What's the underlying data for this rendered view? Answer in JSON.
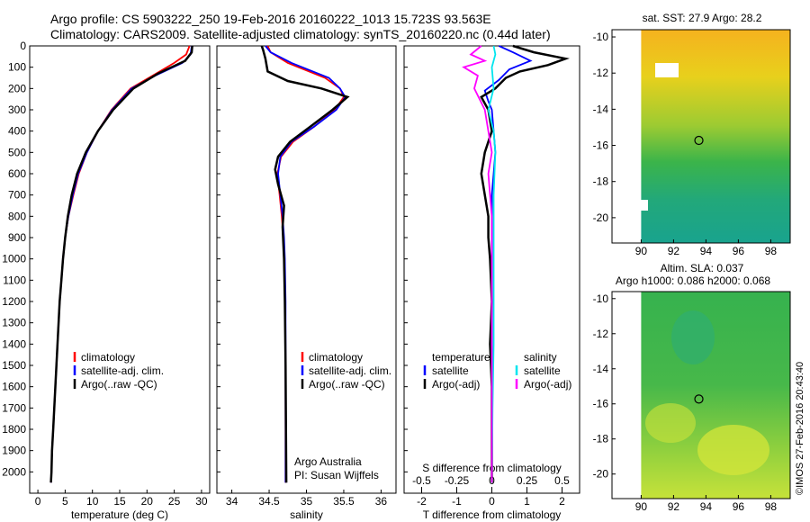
{
  "title": {
    "line1": "Argo profile: CS 5903222_250 19-Feb-2016 20160222_1013 15.723S 93.563E",
    "line2": "Climatology: CARS2009. Satellite-adjusted climatology: synTS_20160220.nc (0.44d later)"
  },
  "colors": {
    "climatology": "#ff0000",
    "satellite": "#0000ff",
    "argo": "#000000",
    "sal_satellite": "#00e5ee",
    "sal_argo": "#ff00ff"
  },
  "chart_data": [
    {
      "type": "line",
      "xlabel": "temperature (deg C)",
      "ylabel": "",
      "xlim": [
        -1.5,
        31.5
      ],
      "ylim": [
        2100,
        0
      ],
      "xticks": [
        "0",
        "5",
        "10",
        "15",
        "20",
        "25",
        "30"
      ],
      "yticks": [
        "0",
        "100",
        "200",
        "300",
        "400",
        "500",
        "600",
        "700",
        "800",
        "900",
        "1000",
        "1100",
        "1200",
        "1300",
        "1400",
        "1500",
        "1600",
        "1700",
        "1800",
        "1900",
        "2000"
      ],
      "legend": [
        "climatology",
        "satellite-adj. clim.",
        "Argo(..raw -QC)"
      ],
      "legend_position": "lower-center",
      "series": [
        {
          "name": "climatology",
          "color": "#ff0000",
          "points": [
            [
              27.8,
              0
            ],
            [
              27.2,
              40
            ],
            [
              25,
              80
            ],
            [
              21,
              140
            ],
            [
              17,
              200
            ],
            [
              13.5,
              300
            ],
            [
              11,
              400
            ],
            [
              9,
              500
            ],
            [
              7.5,
              600
            ],
            [
              6.5,
              700
            ],
            [
              5.6,
              800
            ],
            [
              5,
              900
            ],
            [
              4.6,
              1000
            ],
            [
              4.3,
              1100
            ],
            [
              4,
              1200
            ],
            [
              3.8,
              1300
            ],
            [
              3.6,
              1400
            ],
            [
              3.4,
              1500
            ],
            [
              3.2,
              1600
            ],
            [
              3,
              1700
            ],
            [
              2.8,
              1800
            ],
            [
              2.6,
              1900
            ],
            [
              2.5,
              2000
            ],
            [
              2.4,
              2050
            ]
          ]
        },
        {
          "name": "satellite-adj. clim.",
          "color": "#0000ff",
          "points": [
            [
              28.2,
              0
            ],
            [
              28,
              40
            ],
            [
              26.5,
              80
            ],
            [
              21.5,
              140
            ],
            [
              17.2,
              200
            ],
            [
              13.6,
              300
            ],
            [
              11,
              400
            ],
            [
              9,
              500
            ],
            [
              7.4,
              600
            ],
            [
              6.4,
              700
            ],
            [
              5.6,
              800
            ],
            [
              5,
              900
            ],
            [
              4.6,
              1000
            ],
            [
              4.3,
              1100
            ],
            [
              4,
              1200
            ],
            [
              3.8,
              1300
            ],
            [
              3.6,
              1400
            ],
            [
              3.4,
              1500
            ],
            [
              3.2,
              1600
            ],
            [
              3,
              1700
            ],
            [
              2.8,
              1800
            ],
            [
              2.6,
              1900
            ],
            [
              2.5,
              2000
            ],
            [
              2.4,
              2050
            ]
          ]
        },
        {
          "name": "Argo(..raw -QC)",
          "color": "#000000",
          "points": [
            [
              28.3,
              0
            ],
            [
              28.2,
              30
            ],
            [
              27,
              70
            ],
            [
              22,
              130
            ],
            [
              17.5,
              200
            ],
            [
              13.8,
              300
            ],
            [
              11,
              400
            ],
            [
              8.8,
              500
            ],
            [
              7.2,
              600
            ],
            [
              6.2,
              700
            ],
            [
              5.5,
              800
            ],
            [
              5,
              900
            ],
            [
              4.6,
              1000
            ],
            [
              4.3,
              1100
            ],
            [
              4,
              1200
            ],
            [
              3.8,
              1300
            ],
            [
              3.6,
              1400
            ],
            [
              3.4,
              1500
            ],
            [
              3.2,
              1600
            ],
            [
              3,
              1700
            ],
            [
              2.8,
              1800
            ],
            [
              2.6,
              1900
            ],
            [
              2.5,
              2000
            ],
            [
              2.4,
              2050
            ]
          ]
        }
      ]
    },
    {
      "type": "line",
      "xlabel": "salinity",
      "ylabel": "",
      "xlim": [
        33.8,
        36.2
      ],
      "ylim": [
        2100,
        0
      ],
      "xticks": [
        "34",
        "34.5",
        "35",
        "35.5",
        "36"
      ],
      "legend": [
        "climatology",
        "satellite-adj. clim.",
        "Argo(..raw -QC)"
      ],
      "legend_position": "lower-center",
      "annotations": [
        "Argo Australia",
        "PI: Susan Wijffels"
      ],
      "series": [
        {
          "name": "climatology",
          "color": "#ff0000",
          "points": [
            [
              34.48,
              0
            ],
            [
              34.52,
              30
            ],
            [
              34.75,
              80
            ],
            [
              35.25,
              150
            ],
            [
              35.45,
              200
            ],
            [
              35.5,
              240
            ],
            [
              35.38,
              300
            ],
            [
              35.1,
              380
            ],
            [
              34.82,
              450
            ],
            [
              34.66,
              520
            ],
            [
              34.61,
              600
            ],
            [
              34.64,
              700
            ],
            [
              34.67,
              800
            ],
            [
              34.69,
              900
            ],
            [
              34.7,
              1000
            ],
            [
              34.71,
              1200
            ],
            [
              34.72,
              1500
            ],
            [
              34.72,
              2050
            ]
          ]
        },
        {
          "name": "satellite-adj. clim.",
          "color": "#0000ff",
          "points": [
            [
              34.45,
              0
            ],
            [
              34.52,
              30
            ],
            [
              34.8,
              80
            ],
            [
              35.3,
              150
            ],
            [
              35.45,
              200
            ],
            [
              35.52,
              240
            ],
            [
              35.4,
              300
            ],
            [
              35.1,
              380
            ],
            [
              34.8,
              450
            ],
            [
              34.65,
              520
            ],
            [
              34.62,
              600
            ],
            [
              34.65,
              700
            ],
            [
              34.68,
              800
            ],
            [
              34.7,
              900
            ],
            [
              34.71,
              1000
            ],
            [
              34.72,
              1200
            ],
            [
              34.72,
              1500
            ],
            [
              34.72,
              2050
            ]
          ]
        },
        {
          "name": "Argo(..raw -QC)",
          "color": "#000000",
          "points": [
            [
              34.4,
              0
            ],
            [
              34.42,
              20
            ],
            [
              34.45,
              60
            ],
            [
              34.48,
              120
            ],
            [
              34.75,
              165
            ],
            [
              35.2,
              200
            ],
            [
              35.55,
              240
            ],
            [
              35.35,
              300
            ],
            [
              35.05,
              380
            ],
            [
              34.78,
              450
            ],
            [
              34.62,
              520
            ],
            [
              34.58,
              580
            ],
            [
              34.62,
              650
            ],
            [
              34.7,
              750
            ],
            [
              34.68,
              850
            ],
            [
              34.7,
              1000
            ],
            [
              34.71,
              1200
            ],
            [
              34.72,
              1500
            ],
            [
              34.73,
              2050
            ]
          ]
        }
      ]
    },
    {
      "type": "line",
      "xlabel": "T difference from climatology",
      "x2label": "S difference from climatology",
      "ylabel": "",
      "xlim": [
        -2.5,
        2.5
      ],
      "ylim": [
        2100,
        0
      ],
      "xticks": [
        "-2",
        "-1",
        "0",
        "1",
        "2"
      ],
      "x2ticks": [
        "-0.5",
        "-0.25",
        "0",
        "0.25",
        "0.5"
      ],
      "legend": [
        "temperature",
        "satellite",
        "Argo(-adj)",
        "salinity",
        "satellite",
        "Argo(-adj)"
      ],
      "legend_position": "lower-center",
      "series": [
        {
          "name": "satellite",
          "color": "#0000ff",
          "points": [
            [
              0.2,
              0
            ],
            [
              0.6,
              30
            ],
            [
              1.1,
              70
            ],
            [
              0.5,
              110
            ],
            [
              0.2,
              160
            ],
            [
              -0.2,
              210
            ],
            [
              -0.1,
              260
            ],
            [
              0,
              300
            ],
            [
              0.05,
              400
            ],
            [
              0.1,
              500
            ],
            [
              0.05,
              600
            ],
            [
              0,
              700
            ],
            [
              0,
              800
            ],
            [
              0,
              1000
            ],
            [
              0,
              1500
            ],
            [
              0,
              2050
            ]
          ]
        },
        {
          "name": "Argo(-adj)",
          "color": "#000000",
          "points": [
            [
              0.6,
              0
            ],
            [
              1.2,
              30
            ],
            [
              2.1,
              60
            ],
            [
              1.6,
              90
            ],
            [
              0.8,
              120
            ],
            [
              0.4,
              150
            ],
            [
              0.1,
              200
            ],
            [
              -0.3,
              240
            ],
            [
              -0.1,
              300
            ],
            [
              0,
              400
            ],
            [
              -0.2,
              500
            ],
            [
              -0.3,
              600
            ],
            [
              -0.2,
              700
            ],
            [
              -0.1,
              800
            ],
            [
              -0.1,
              900
            ],
            [
              -0.05,
              1000
            ],
            [
              0,
              1200
            ],
            [
              -0.05,
              1400
            ],
            [
              0,
              1600
            ],
            [
              0,
              2050
            ]
          ]
        },
        {
          "name": "satellite",
          "color": "#00e5ee",
          "points": [
            [
              0.05,
              0
            ],
            [
              0.1,
              40
            ],
            [
              0,
              100
            ],
            [
              0.05,
              200
            ],
            [
              -0.1,
              300
            ],
            [
              0.05,
              400
            ],
            [
              0.1,
              500
            ],
            [
              0.05,
              700
            ],
            [
              0.05,
              900
            ],
            [
              0.05,
              1100
            ],
            [
              0.05,
              1400
            ],
            [
              0.02,
              1700
            ],
            [
              0,
              2050
            ]
          ]
        },
        {
          "name": "Argo(-adj)",
          "color": "#ff00ff",
          "points": [
            [
              -0.3,
              0
            ],
            [
              -0.6,
              40
            ],
            [
              -0.2,
              70
            ],
            [
              -0.8,
              100
            ],
            [
              -0.4,
              140
            ],
            [
              -0.5,
              200
            ],
            [
              -0.2,
              300
            ],
            [
              -0.1,
              400
            ],
            [
              0,
              500
            ],
            [
              -0.1,
              600
            ],
            [
              -0.05,
              700
            ],
            [
              0,
              800
            ],
            [
              0,
              1000
            ],
            [
              0,
              1300
            ],
            [
              0,
              1600
            ],
            [
              0,
              2050
            ]
          ]
        }
      ]
    },
    {
      "type": "heatmap",
      "title": "sat. SST: 27.9 Argo: 28.2",
      "xlim": [
        88.2,
        99.2
      ],
      "ylim": [
        -21.4,
        -9.6
      ],
      "xticks": [
        "90",
        "92",
        "94",
        "96",
        "98"
      ],
      "yticks": [
        "-10",
        "-12",
        "-14",
        "-16",
        "-18",
        "-20"
      ],
      "marker": {
        "lon": 93.563,
        "lat": -15.723
      }
    },
    {
      "type": "heatmap",
      "title_line1": "Altim. SLA: 0.037",
      "title_line2": "Argo h1000: 0.086 h2000: 0.068",
      "xlim": [
        88.2,
        99.2
      ],
      "ylim": [
        -21.4,
        -9.6
      ],
      "xticks": [
        "90",
        "92",
        "94",
        "96",
        "98"
      ],
      "yticks": [
        "-10",
        "-12",
        "-14",
        "-16",
        "-18",
        "-20"
      ],
      "marker": {
        "lon": 93.563,
        "lat": -15.723
      }
    }
  ],
  "credit": "©IMOS 27-Feb-2016 20:43:40"
}
